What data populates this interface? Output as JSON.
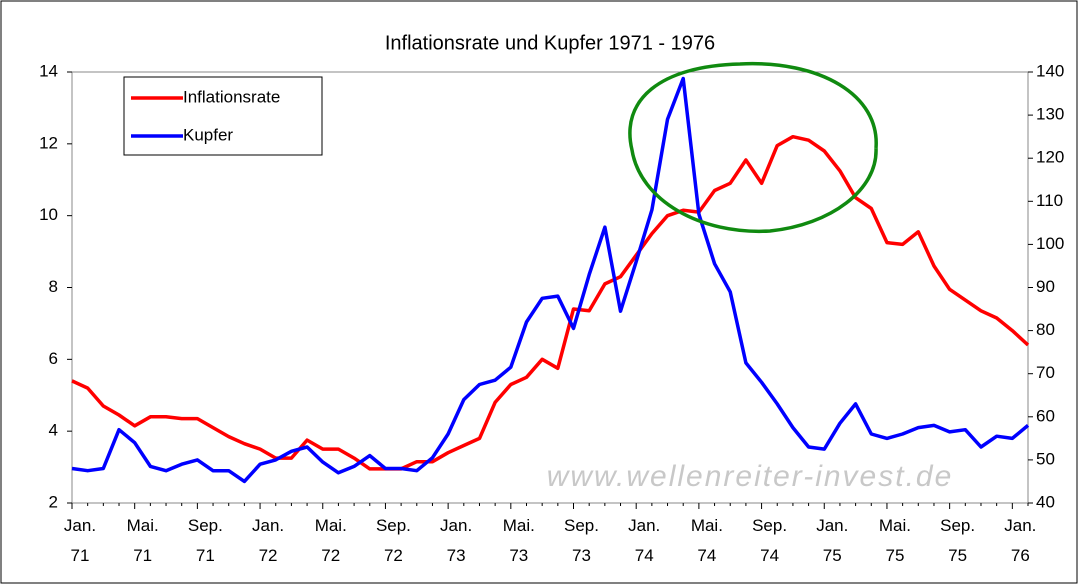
{
  "chart_data": {
    "type": "line",
    "title": "Inflationsrate und Kupfer 1971 - 1976",
    "watermark": "www.wellenreiter-invest.de",
    "legend": "upper left",
    "categories": [
      "Jan. 71",
      null,
      null,
      null,
      "Mai. 71",
      null,
      null,
      null,
      "Sep. 71",
      null,
      null,
      null,
      "Jan. 72",
      null,
      null,
      null,
      "Mai. 72",
      null,
      null,
      null,
      "Sep. 72",
      null,
      null,
      null,
      "Jan. 73",
      null,
      null,
      null,
      "Mai. 73",
      null,
      null,
      null,
      "Sep. 73",
      null,
      null,
      null,
      "Jan. 74",
      null,
      null,
      null,
      "Mai. 74",
      null,
      null,
      null,
      "Sep. 74",
      null,
      null,
      null,
      "Jan. 75",
      null,
      null,
      null,
      "Mai. 75",
      null,
      null,
      null,
      "Sep. 75",
      null,
      null,
      null,
      "Jan. 76",
      null
    ],
    "ylim": [
      2,
      14
    ],
    "yticks": [
      2,
      4,
      6,
      8,
      10,
      12,
      14
    ],
    "y2lim": [
      40,
      140
    ],
    "y2ticks": [
      40,
      50,
      60,
      70,
      80,
      90,
      100,
      110,
      120,
      130,
      140
    ],
    "series": [
      {
        "name": "Inflationsrate",
        "color": "#ff0000",
        "values": [
          5.4,
          5.2,
          4.7,
          4.45,
          4.15,
          4.4,
          4.4,
          4.35,
          4.35,
          4.1,
          3.85,
          3.65,
          3.5,
          3.25,
          3.25,
          3.75,
          3.5,
          3.5,
          3.25,
          2.95,
          2.95,
          2.95,
          3.15,
          3.15,
          3.4,
          3.6,
          3.8,
          4.8,
          5.3,
          5.5,
          6.0,
          5.75,
          7.4,
          7.35,
          8.1,
          8.3,
          8.9,
          9.5,
          10.0,
          10.15,
          10.1,
          10.7,
          10.9,
          11.55,
          10.9,
          11.95,
          12.2,
          12.1,
          11.8,
          11.25,
          10.5,
          10.2,
          9.25,
          9.2,
          9.55,
          8.6,
          7.95,
          7.65,
          7.35,
          7.15,
          6.8,
          6.4
        ]
      },
      {
        "name": "Kupfer",
        "color": "#0000ff",
        "axis": "y2",
        "values": [
          48,
          47.5,
          48,
          57,
          54,
          48.5,
          47.5,
          49,
          50,
          47.5,
          47.5,
          45,
          49,
          50,
          52,
          53,
          49.5,
          47,
          48.5,
          51,
          48,
          48,
          47.5,
          50.5,
          56,
          64,
          67.5,
          68.5,
          71.5,
          82,
          87.5,
          88,
          80.5,
          93,
          104,
          84.5,
          96,
          108,
          129,
          138.5,
          107,
          95.5,
          89,
          72.5,
          68,
          63,
          57.5,
          53,
          52.5,
          58.5,
          63,
          56,
          55,
          56,
          57.5,
          58,
          56.5,
          57,
          53,
          55.5,
          55,
          58
        ]
      }
    ]
  }
}
